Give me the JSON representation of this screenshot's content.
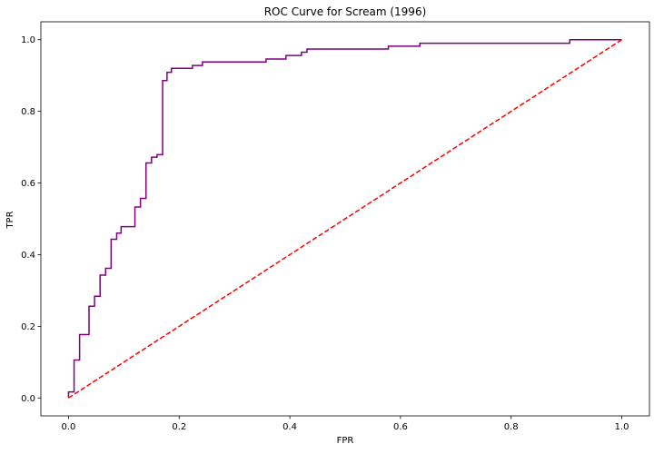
{
  "chart_data": {
    "type": "line",
    "title": "ROC Curve for Scream (1996)",
    "xlabel": "FPR",
    "ylabel": "TPR",
    "xlim": [
      -0.05,
      1.05
    ],
    "ylim": [
      -0.05,
      1.05
    ],
    "xticks": [
      0.0,
      0.2,
      0.4,
      0.6,
      0.8,
      1.0
    ],
    "yticks": [
      0.0,
      0.2,
      0.4,
      0.6,
      0.8,
      1.0
    ],
    "xtick_labels": [
      "0.0",
      "0.2",
      "0.4",
      "0.6",
      "0.8",
      "1.0"
    ],
    "ytick_labels": [
      "0.0",
      "0.2",
      "0.4",
      "0.6",
      "0.8",
      "1.0"
    ],
    "grid": false,
    "legend": "none",
    "series": [
      {
        "style": "solid",
        "step": true,
        "color": "#800080",
        "x": [
          0.0,
          0.0,
          0.01,
          0.01,
          0.02,
          0.02,
          0.037,
          0.037,
          0.047,
          0.047,
          0.057,
          0.057,
          0.067,
          0.067,
          0.077,
          0.077,
          0.087,
          0.087,
          0.095,
          0.095,
          0.12,
          0.12,
          0.13,
          0.13,
          0.14,
          0.14,
          0.15,
          0.15,
          0.16,
          0.16,
          0.17,
          0.17,
          0.178,
          0.178,
          0.186,
          0.186,
          0.224,
          0.224,
          0.242,
          0.242,
          0.357,
          0.357,
          0.393,
          0.393,
          0.421,
          0.421,
          0.431,
          0.431,
          0.578,
          0.578,
          0.635,
          0.635,
          0.906,
          0.906,
          1.0
        ],
        "y": [
          0.0,
          0.017,
          0.017,
          0.106,
          0.106,
          0.177,
          0.177,
          0.256,
          0.256,
          0.284,
          0.284,
          0.343,
          0.343,
          0.362,
          0.362,
          0.443,
          0.443,
          0.46,
          0.46,
          0.478,
          0.478,
          0.533,
          0.533,
          0.557,
          0.557,
          0.656,
          0.656,
          0.672,
          0.672,
          0.679,
          0.679,
          0.886,
          0.886,
          0.909,
          0.909,
          0.92,
          0.92,
          0.928,
          0.928,
          0.938,
          0.938,
          0.946,
          0.946,
          0.956,
          0.956,
          0.965,
          0.965,
          0.974,
          0.974,
          0.982,
          0.982,
          0.99,
          0.99,
          1.0,
          1.0
        ]
      },
      {
        "style": "dashed",
        "step": false,
        "color": "#ff0000",
        "x": [
          0.0,
          1.0
        ],
        "y": [
          0.0,
          1.0
        ]
      }
    ]
  }
}
